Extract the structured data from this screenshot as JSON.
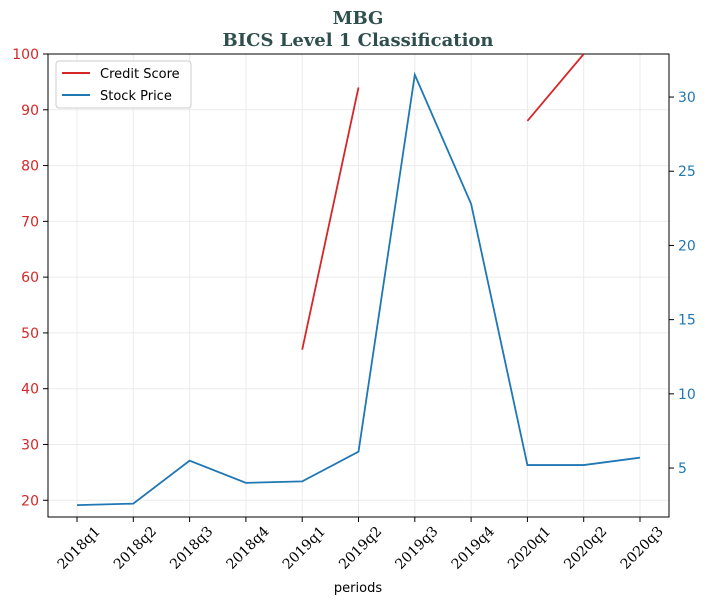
{
  "chart_data": {
    "type": "line",
    "title": "MBG",
    "subtitle": "BICS Level 1 Classification",
    "xlabel": "periods",
    "categories": [
      "2018q1",
      "2018q2",
      "2018q3",
      "2018q4",
      "2019q1",
      "2019q2",
      "2019q3",
      "2019q4",
      "2020q1",
      "2020q2",
      "2020q3"
    ],
    "y_left": {
      "range": [
        17,
        100
      ],
      "ticks": [
        20,
        30,
        40,
        50,
        60,
        70,
        80,
        90,
        100
      ],
      "color": "#d62728"
    },
    "y_right": {
      "range": [
        1.7,
        32.9
      ],
      "ticks": [
        5,
        10,
        15,
        20,
        25,
        30
      ],
      "color": "#1f77b4"
    },
    "grid": true,
    "legend_position": "top-left",
    "series": [
      {
        "name": "Credit Score",
        "axis": "left",
        "color": "#d62728",
        "values": [
          null,
          null,
          null,
          null,
          47,
          94,
          null,
          null,
          88,
          100,
          null
        ]
      },
      {
        "name": "Stock Price",
        "axis": "right",
        "color": "#1f77b4",
        "values": [
          2.5,
          2.6,
          5.5,
          4.0,
          4.1,
          6.1,
          31.5,
          22.8,
          5.2,
          5.2,
          5.7
        ]
      }
    ]
  }
}
